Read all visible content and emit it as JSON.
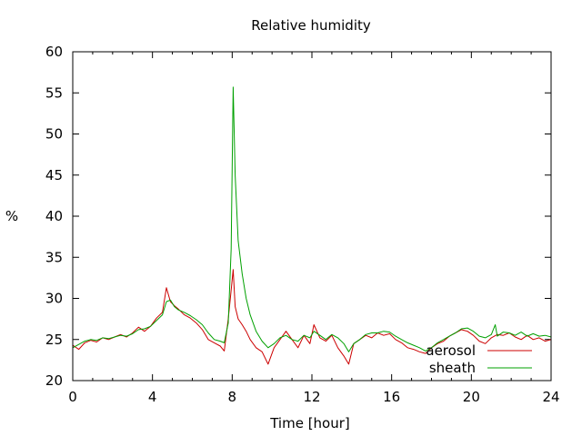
{
  "chart_data": {
    "type": "line",
    "title": "Relative humidity",
    "xlabel": "Time [hour]",
    "ylabel": "%",
    "xlim": [
      0,
      24
    ],
    "ylim": [
      20,
      60
    ],
    "xticks": [
      0,
      4,
      8,
      12,
      16,
      20,
      24
    ],
    "yticks": [
      20,
      25,
      30,
      35,
      40,
      45,
      50,
      55,
      60
    ],
    "grid": false,
    "legend": "bottom-right",
    "series": [
      {
        "name": "aerosol",
        "color": "#cc0000",
        "x": [
          0,
          0.3,
          0.6,
          0.9,
          1.2,
          1.5,
          1.8,
          2.1,
          2.4,
          2.7,
          3.0,
          3.3,
          3.6,
          3.9,
          4.2,
          4.5,
          4.7,
          4.9,
          5.1,
          5.3,
          5.6,
          5.9,
          6.2,
          6.5,
          6.8,
          7.1,
          7.4,
          7.6,
          7.8,
          7.95,
          8.05,
          8.15,
          8.3,
          8.5,
          8.7,
          8.9,
          9.2,
          9.5,
          9.8,
          10.1,
          10.4,
          10.7,
          11.0,
          11.3,
          11.6,
          11.9,
          12.1,
          12.4,
          12.7,
          13.0,
          13.3,
          13.6,
          13.85,
          14.1,
          14.4,
          14.7,
          15.0,
          15.3,
          15.6,
          15.9,
          16.2,
          16.5,
          16.8,
          17.1,
          17.4,
          17.7,
          18.0,
          18.3,
          18.6,
          18.9,
          19.2,
          19.5,
          19.8,
          20.1,
          20.4,
          20.7,
          21.0,
          21.3,
          21.6,
          21.9,
          22.2,
          22.5,
          22.8,
          23.1,
          23.4,
          23.7,
          24.0
        ],
        "values": [
          24.3,
          23.8,
          24.6,
          24.9,
          24.7,
          25.2,
          25.0,
          25.3,
          25.6,
          25.3,
          25.8,
          26.5,
          26.0,
          26.6,
          27.6,
          28.3,
          31.3,
          29.6,
          29.1,
          28.7,
          28.0,
          27.6,
          27.0,
          26.2,
          25.0,
          24.6,
          24.2,
          23.6,
          27.5,
          31.0,
          33.5,
          29.0,
          27.5,
          26.8,
          26.0,
          25.0,
          24.0,
          23.5,
          22.0,
          24.0,
          25.0,
          26.0,
          25.0,
          24.0,
          25.5,
          24.5,
          26.8,
          25.2,
          24.8,
          25.5,
          24.0,
          23.0,
          22.0,
          24.5,
          25.0,
          25.5,
          25.2,
          25.8,
          25.5,
          25.7,
          25.0,
          24.6,
          24.0,
          23.8,
          23.5,
          23.3,
          24.0,
          24.5,
          24.8,
          25.4,
          25.8,
          26.2,
          26.0,
          25.5,
          24.8,
          24.5,
          25.2,
          25.6,
          25.5,
          25.8,
          25.3,
          25.0,
          25.5,
          25.0,
          25.2,
          24.8,
          25.0
        ]
      },
      {
        "name": "sheath",
        "color": "#00a000",
        "x": [
          0,
          0.3,
          0.6,
          0.9,
          1.2,
          1.5,
          1.8,
          2.1,
          2.4,
          2.7,
          3.0,
          3.3,
          3.6,
          3.9,
          4.2,
          4.5,
          4.7,
          4.9,
          5.1,
          5.3,
          5.6,
          5.9,
          6.2,
          6.5,
          6.8,
          7.1,
          7.4,
          7.6,
          7.8,
          7.95,
          8.05,
          8.15,
          8.3,
          8.5,
          8.7,
          8.9,
          9.2,
          9.5,
          9.8,
          10.1,
          10.4,
          10.7,
          11.0,
          11.3,
          11.6,
          11.9,
          12.1,
          12.4,
          12.7,
          13.0,
          13.3,
          13.6,
          13.85,
          14.1,
          14.4,
          14.7,
          15.0,
          15.3,
          15.6,
          15.9,
          16.2,
          16.5,
          16.8,
          17.1,
          17.4,
          17.7,
          18.0,
          18.3,
          18.6,
          18.9,
          19.2,
          19.5,
          19.8,
          20.1,
          20.4,
          20.7,
          21.0,
          21.2,
          21.3,
          21.6,
          21.9,
          22.2,
          22.5,
          22.8,
          23.1,
          23.4,
          23.7,
          24.0
        ],
        "values": [
          24.0,
          24.4,
          24.8,
          25.0,
          24.9,
          25.2,
          25.1,
          25.3,
          25.5,
          25.4,
          25.7,
          26.2,
          26.3,
          26.6,
          27.3,
          28.0,
          29.6,
          29.8,
          29.0,
          28.6,
          28.3,
          27.9,
          27.4,
          26.8,
          25.8,
          25.0,
          24.8,
          24.6,
          27.0,
          36.0,
          55.7,
          45.0,
          37.0,
          33.0,
          30.0,
          28.0,
          26.0,
          24.8,
          24.0,
          24.5,
          25.2,
          25.5,
          25.0,
          24.8,
          25.5,
          25.2,
          26.0,
          25.5,
          25.0,
          25.6,
          25.2,
          24.5,
          23.5,
          24.5,
          25.0,
          25.6,
          25.8,
          25.8,
          26.0,
          25.9,
          25.4,
          25.0,
          24.6,
          24.3,
          24.0,
          23.6,
          24.0,
          24.6,
          25.0,
          25.4,
          25.8,
          26.3,
          26.4,
          26.0,
          25.4,
          25.2,
          25.6,
          26.8,
          25.4,
          25.9,
          25.8,
          25.5,
          25.9,
          25.4,
          25.7,
          25.4,
          25.5,
          25.3
        ]
      }
    ]
  }
}
